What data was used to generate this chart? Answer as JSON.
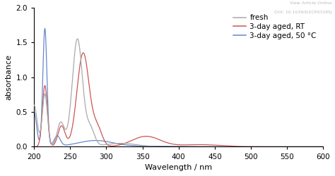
{
  "xlabel": "Wavelength / nm",
  "ylabel": "absorbance",
  "xlim": [
    200,
    600
  ],
  "ylim": [
    0.0,
    2.0
  ],
  "xticks": [
    200,
    250,
    300,
    350,
    400,
    450,
    500,
    550,
    600
  ],
  "yticks": [
    0.0,
    0.5,
    1.0,
    1.5,
    2.0
  ],
  "legend_labels": [
    "fresh",
    "3-day aged, RT",
    "3-day aged, 50 °C"
  ],
  "colors": {
    "fresh": "#aaaaaa",
    "rt": "#cc5555",
    "hot": "#6688cc"
  },
  "watermark_line1": "View Article Online",
  "watermark_line2": "DOI: 10.1039/D2CP03185J",
  "background_color": "#ffffff"
}
